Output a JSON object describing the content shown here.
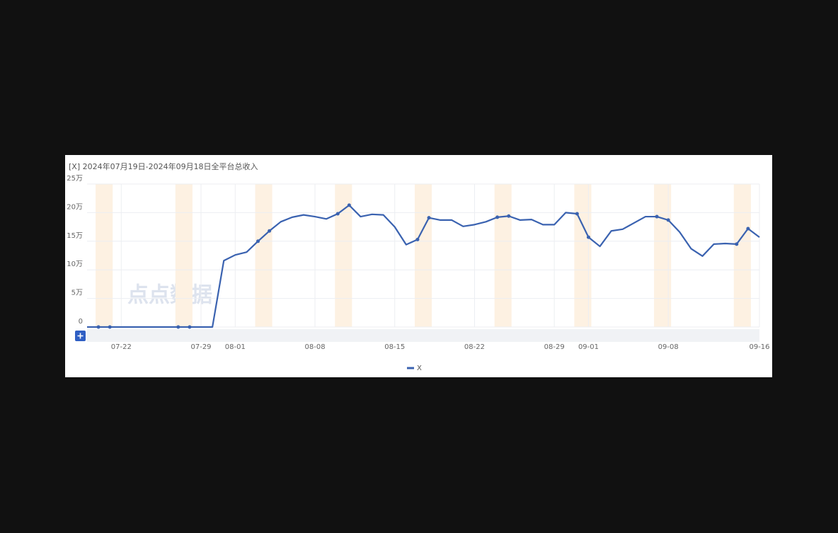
{
  "chart_data": {
    "type": "line",
    "title": "[X]  2024年07月19日-2024年09月18日全平台总收入",
    "watermark": "点点数据",
    "categories": [
      null,
      null,
      null,
      "07-22",
      null,
      null,
      null,
      null,
      null,
      null,
      "07-29",
      null,
      null,
      "08-01",
      null,
      null,
      null,
      null,
      null,
      null,
      "08-08",
      null,
      null,
      null,
      null,
      null,
      null,
      "08-15",
      null,
      null,
      null,
      null,
      null,
      null,
      "08-22",
      null,
      null,
      null,
      null,
      null,
      null,
      "08-29",
      null,
      null,
      "09-01",
      null,
      null,
      null,
      null,
      null,
      null,
      "09-08",
      null,
      null,
      null,
      null,
      null,
      null,
      null,
      "09-16"
    ],
    "series": [
      {
        "name": "X",
        "color": "#3a62b0",
        "values": [
          0,
          0,
          0,
          0,
          0,
          0,
          0,
          0,
          0,
          0,
          0,
          0,
          11.6,
          12.6,
          13.1,
          15.0,
          16.8,
          18.4,
          19.2,
          19.6,
          19.3,
          18.9,
          19.8,
          21.3,
          19.3,
          19.7,
          19.6,
          17.5,
          14.4,
          15.3,
          19.1,
          18.7,
          18.7,
          17.6,
          17.9,
          18.4,
          19.2,
          19.4,
          18.7,
          18.8,
          17.9,
          17.9,
          20.0,
          19.8,
          15.7,
          14.1,
          16.8,
          17.1,
          18.2,
          19.3,
          19.3,
          18.7,
          16.6,
          13.7,
          12.4,
          14.5,
          14.6,
          14.5,
          17.2,
          15.7
        ]
      }
    ],
    "ylim": [
      0,
      25
    ],
    "yticks": [
      0,
      {
        "value": 5,
        "label": "5万"
      },
      {
        "value": 10,
        "label": "10万"
      },
      {
        "value": 15,
        "label": "15万"
      },
      {
        "value": 20,
        "label": "20万"
      },
      {
        "value": 25,
        "label": "25万"
      }
    ],
    "grid": true
  }
}
